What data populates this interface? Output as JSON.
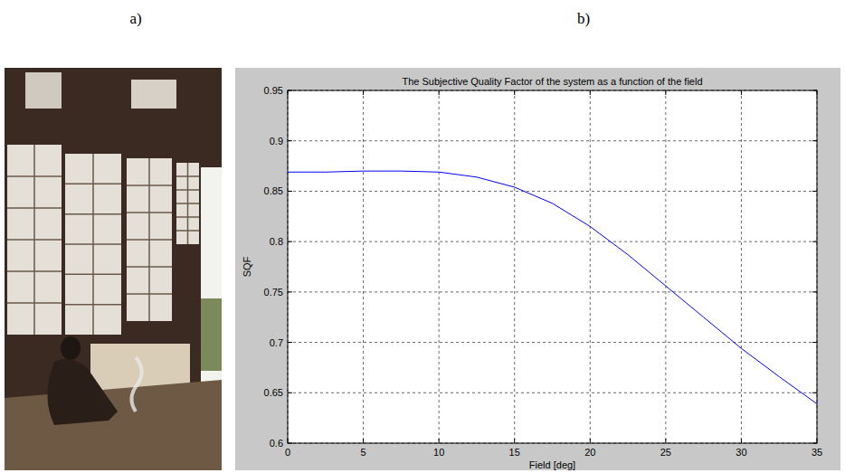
{
  "panel_labels": [
    "a)",
    "b)"
  ],
  "chart_data": {
    "type": "line",
    "title": "The Subjective Quality Factor of the system as a function of the field",
    "x_label": "Field [deg]",
    "y_label": "SQF",
    "x": [
      0,
      2.5,
      5,
      7.5,
      10,
      12.5,
      15,
      17.5,
      20,
      22.5,
      25,
      27.5,
      30,
      32.5,
      35
    ],
    "values": [
      0.869,
      0.869,
      0.87,
      0.87,
      0.869,
      0.864,
      0.854,
      0.838,
      0.815,
      0.787,
      0.756,
      0.725,
      0.694,
      0.666,
      0.639
    ],
    "color": "#0000ff",
    "xlim": [
      0,
      35
    ],
    "xticks": [
      0,
      5,
      10,
      15,
      20,
      25,
      30,
      35
    ],
    "ylim": [
      0.6,
      0.95
    ],
    "yticks": [
      0.6,
      0.65,
      0.7,
      0.75,
      0.8,
      0.85,
      0.9,
      0.95
    ],
    "grid": true
  }
}
